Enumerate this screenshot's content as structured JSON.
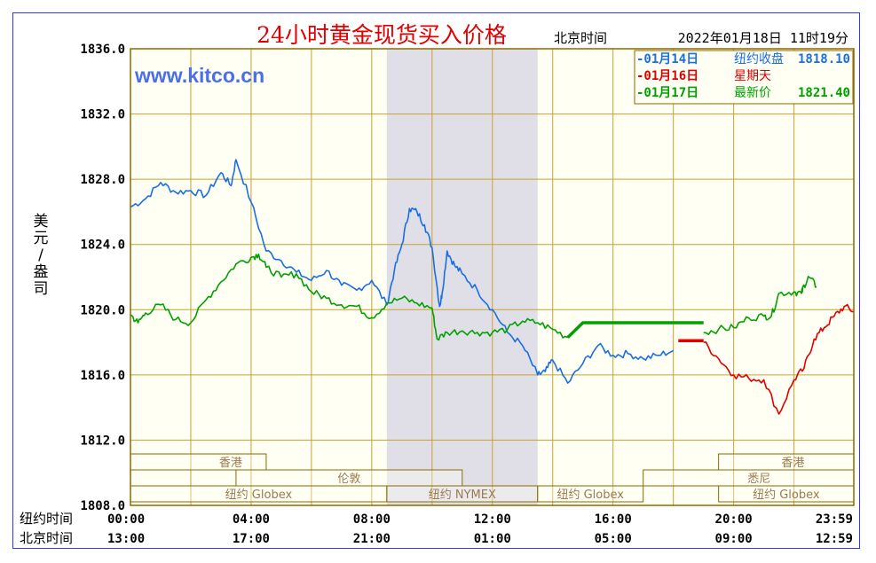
{
  "chart_data": {
    "type": "line",
    "title": "24小时黄金现货买入价格",
    "timezone_label": "北京时间",
    "timestamp": "2022年01月18日 11时19分",
    "watermark": "www.kitco.cn",
    "ylabel": "美元/盎司",
    "ylim": [
      1808.0,
      1836.0
    ],
    "yticks": [
      "1836.0",
      "1832.0",
      "1828.0",
      "1824.0",
      "1820.0",
      "1816.0",
      "1812.0",
      "1808.0"
    ],
    "xlim": [
      0,
      1439
    ],
    "x_row1_label": "纽约时间",
    "x_row1_ticks": [
      "00:00",
      "04:00",
      "08:00",
      "12:00",
      "16:00",
      "20:00",
      "23:59"
    ],
    "x_row2_label": "北京时间",
    "x_row2_ticks": [
      "13:00",
      "17:00",
      "21:00",
      "01:00",
      "05:00",
      "09:00",
      "12:59"
    ],
    "grid": true,
    "legend_position": "top-right",
    "legend": [
      {
        "date": "-01月14日",
        "label": "纽约收盘",
        "value": "1818.10",
        "color": "#1a6fe0"
      },
      {
        "date": "-01月16日",
        "label": "星期天",
        "value": "",
        "color": "#e00000"
      },
      {
        "date": "-01月17日",
        "label": "最新价",
        "value": "1821.40",
        "color": "#00a000"
      }
    ],
    "shaded_session": [
      510,
      810
    ],
    "series": [
      {
        "date": "01月14日",
        "color": "#1a6fe0",
        "x": [
          0,
          30,
          60,
          90,
          120,
          150,
          180,
          200,
          210,
          240,
          270,
          300,
          330,
          360,
          390,
          420,
          450,
          480,
          510,
          525,
          540,
          555,
          570,
          585,
          600,
          615,
          620,
          630,
          645,
          660,
          690,
          720,
          750,
          780,
          810,
          825,
          840,
          870,
          900,
          930,
          960,
          990,
          1020,
          1050,
          1080
        ],
        "y": [
          1826.3,
          1826.8,
          1827.8,
          1827.2,
          1827.3,
          1827.0,
          1828.4,
          1827.6,
          1829.2,
          1826.6,
          1823.6,
          1823.0,
          1822.3,
          1821.8,
          1822.4,
          1821.5,
          1821.2,
          1821.8,
          1820.3,
          1822.4,
          1824.0,
          1826.2,
          1826.0,
          1825.2,
          1823.8,
          1820.2,
          1821.0,
          1823.6,
          1822.7,
          1822.2,
          1821.2,
          1820.0,
          1818.6,
          1817.8,
          1816.0,
          1816.2,
          1816.9,
          1815.5,
          1816.7,
          1817.8,
          1817.2,
          1817.3,
          1817.0,
          1817.2,
          1817.5
        ]
      },
      {
        "date": "01月14日 纽约收盘",
        "color": "#e00000",
        "x": [
          1090,
          1140
        ],
        "y": [
          1818.1,
          1818.1
        ]
      },
      {
        "date": "01月16日",
        "color": "#e00000",
        "x": [
          1140,
          1170,
          1200,
          1230,
          1260,
          1290,
          1320,
          1340,
          1360,
          1380,
          1400,
          1420,
          1439
        ],
        "y": [
          1818.0,
          1817.0,
          1816.0,
          1815.8,
          1815.7,
          1813.6,
          1815.7,
          1816.4,
          1818.2,
          1818.9,
          1819.6,
          1820.2,
          1819.9
        ]
      },
      {
        "date": "01月17日",
        "color": "#00a000",
        "x": [
          0,
          15,
          30,
          60,
          90,
          120,
          150,
          180,
          210,
          240,
          255,
          270,
          300,
          330,
          360,
          390,
          420,
          450,
          480,
          510,
          540,
          570,
          600,
          610,
          630,
          660,
          690,
          720,
          750,
          780,
          810,
          840,
          870
        ],
        "y": [
          1819.7,
          1819.2,
          1819.8,
          1820.3,
          1819.4,
          1819.2,
          1820.6,
          1821.7,
          1822.8,
          1823.2,
          1823.4,
          1822.6,
          1822.0,
          1822.2,
          1821.1,
          1820.7,
          1820.3,
          1820.2,
          1819.5,
          1820.4,
          1820.7,
          1820.4,
          1820.1,
          1818.2,
          1818.6,
          1818.7,
          1818.6,
          1818.6,
          1818.8,
          1819.3,
          1819.2,
          1818.8,
          1818.3
        ]
      },
      {
        "date": "01月17日 休市",
        "color": "#00a000",
        "x": [
          870,
          900,
          1140
        ],
        "y": [
          1818.3,
          1819.2,
          1819.2
        ]
      },
      {
        "date": "01月17日 晚间",
        "color": "#00a000",
        "x": [
          1140,
          1170,
          1200,
          1230,
          1260,
          1275,
          1290,
          1320,
          1335,
          1340,
          1350,
          1365
        ],
        "y": [
          1818.6,
          1818.8,
          1818.9,
          1819.5,
          1819.6,
          1819.6,
          1821.0,
          1821.1,
          1821.0,
          1821.5,
          1822.0,
          1821.4
        ]
      }
    ],
    "sessions_row1": [
      {
        "label": "香港",
        "start": 0,
        "end": 270
      },
      {
        "label": "香港",
        "start": 1170,
        "end": 1439
      }
    ],
    "sessions_row2": [
      {
        "label": "伦敦",
        "start": 210,
        "end": 660
      },
      {
        "label": "悉尼",
        "start": 1020,
        "end": 1439
      }
    ],
    "sessions_row3": [
      {
        "label": "纽约 Globex",
        "start": 0,
        "end": 510
      },
      {
        "label": "纽约 NYMEX",
        "start": 510,
        "end": 810
      },
      {
        "label": "纽约 Globex",
        "start": 810,
        "end": 1020
      },
      {
        "label": "纽约 Globex",
        "start": 1170,
        "end": 1439
      }
    ]
  }
}
